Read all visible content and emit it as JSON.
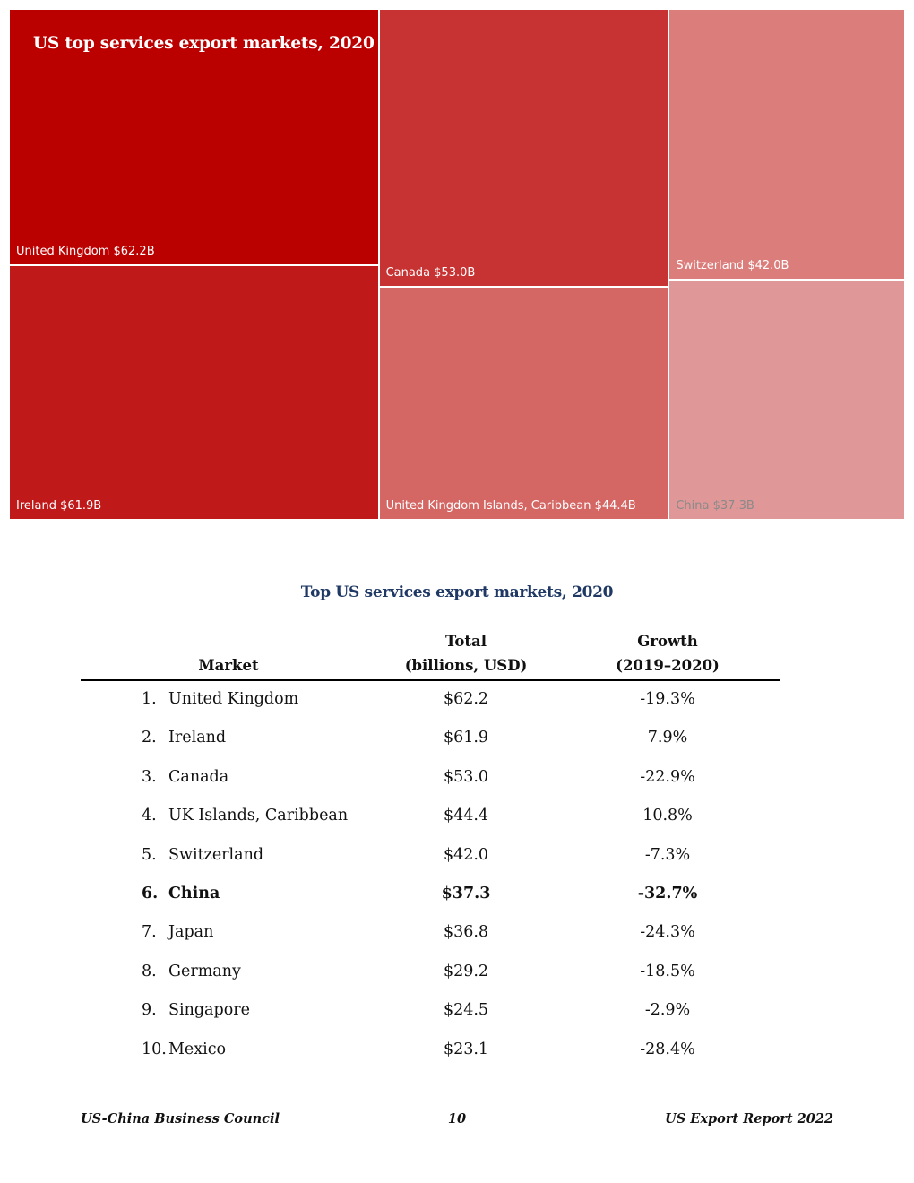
{
  "chart_data": [
    {
      "type": "treemap",
      "title": "US top services export markets, 2020",
      "unit": "billions USD",
      "items": [
        {
          "label": "United Kingdom $62.2B",
          "name": "United Kingdom",
          "value": 62.2,
          "color": "#bb0000"
        },
        {
          "label": "Ireland $61.9B",
          "name": "Ireland",
          "value": 61.9,
          "color": "#bf1919"
        },
        {
          "label": "Canada $53.0B",
          "name": "Canada",
          "value": 53.0,
          "color": "#c73232"
        },
        {
          "label": "United Kingdom Islands, Caribbean $44.4B",
          "name": "United Kingdom Islands, Caribbean",
          "value": 44.4,
          "color": "#d46664"
        },
        {
          "label": "Switzerland $42.0B",
          "name": "Switzerland",
          "value": 42.0,
          "color": "#db7d7b"
        },
        {
          "label": "China $37.3B",
          "name": "China",
          "value": 37.3,
          "color": "#e09797"
        }
      ]
    },
    {
      "type": "table",
      "title": "Top US services export markets, 2020",
      "headers": {
        "market": "Market",
        "total_line1": "Total",
        "total_line2": "(billions, USD)",
        "growth_line1": "Growth",
        "growth_line2": "(2019–2020)"
      },
      "rows": [
        {
          "rank": "1.",
          "market": "United Kingdom",
          "total": "$62.2",
          "growth": "-19.3%",
          "highlight": false
        },
        {
          "rank": "2.",
          "market": "Ireland",
          "total": "$61.9",
          "growth": "7.9%",
          "highlight": false
        },
        {
          "rank": "3.",
          "market": "Canada",
          "total": "$53.0",
          "growth": "-22.9%",
          "highlight": false
        },
        {
          "rank": "4.",
          "market": "UK Islands, Caribbean",
          "total": "$44.4",
          "growth": "10.8%",
          "highlight": false
        },
        {
          "rank": "5.",
          "market": "Switzerland",
          "total": "$42.0",
          "growth": "-7.3%",
          "highlight": false
        },
        {
          "rank": "6.",
          "market": "China",
          "total": "$37.3",
          "growth": "-32.7%",
          "highlight": true
        },
        {
          "rank": "7.",
          "market": "Japan",
          "total": "$36.8",
          "growth": "-24.3%",
          "highlight": false
        },
        {
          "rank": "8.",
          "market": "Germany",
          "total": "$29.2",
          "growth": "-18.5%",
          "highlight": false
        },
        {
          "rank": "9.",
          "market": "Singapore",
          "total": "$24.5",
          "growth": "-2.9%",
          "highlight": false
        },
        {
          "rank": "10.",
          "market": "Mexico",
          "total": "$23.1",
          "growth": "-28.4%",
          "highlight": false
        }
      ]
    }
  ],
  "footer": {
    "left": "US-China Business Council",
    "center": "10",
    "right": "US Export Report 2022"
  }
}
